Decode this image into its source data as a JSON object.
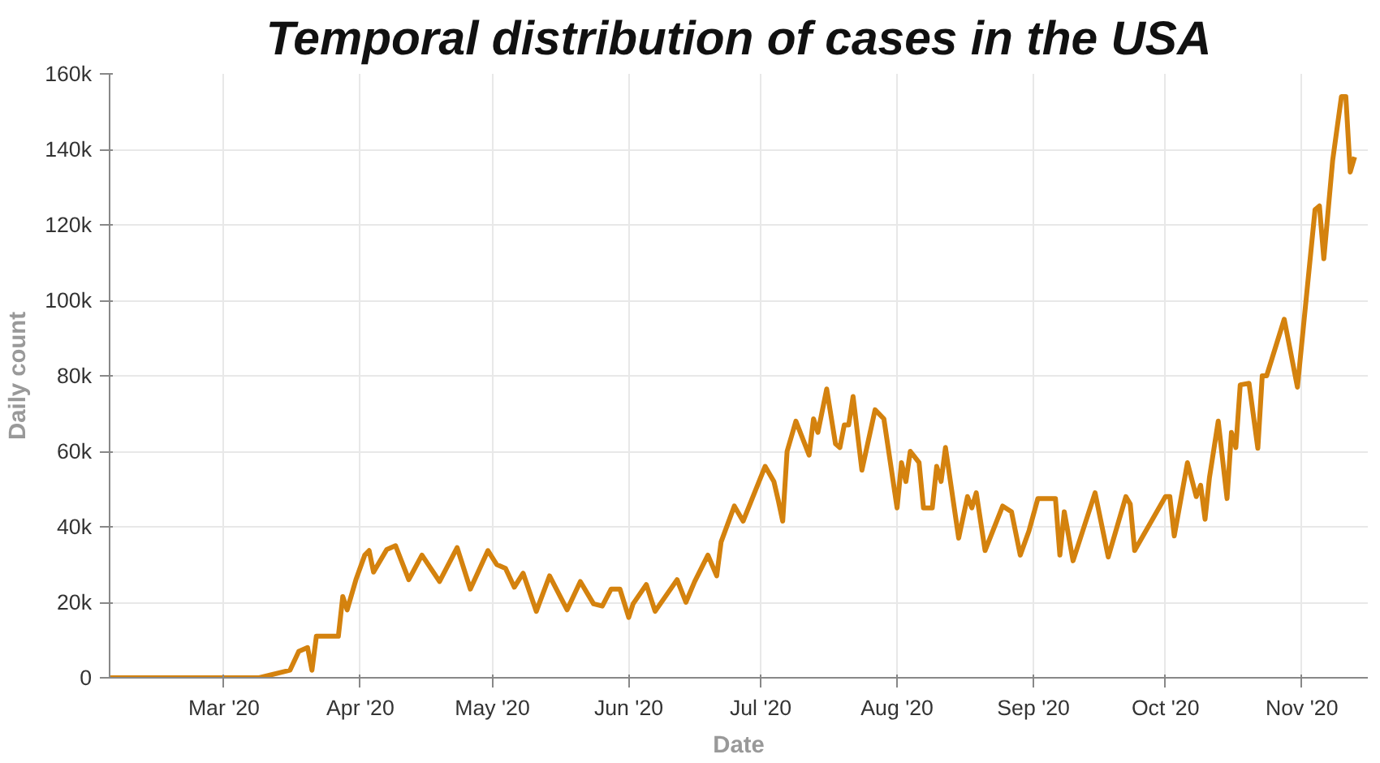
{
  "chart_data": {
    "type": "line",
    "title": "Temporal distribution of cases in the USA",
    "xlabel": "Date",
    "ylabel": "Daily count",
    "x": [
      "2020-02-04",
      "2020-03-09",
      "2020-03-16",
      "2020-03-18",
      "2020-03-20",
      "2020-03-21",
      "2020-03-22",
      "2020-03-27",
      "2020-03-28",
      "2020-03-29",
      "2020-03-31",
      "2020-04-02",
      "2020-04-03",
      "2020-04-04",
      "2020-04-07",
      "2020-04-09",
      "2020-04-12",
      "2020-04-15",
      "2020-04-19",
      "2020-04-23",
      "2020-04-26",
      "2020-04-30",
      "2020-05-02",
      "2020-05-04",
      "2020-05-06",
      "2020-05-08",
      "2020-05-11",
      "2020-05-14",
      "2020-05-18",
      "2020-05-21",
      "2020-05-24",
      "2020-05-26",
      "2020-05-28",
      "2020-05-30",
      "2020-06-01",
      "2020-06-02",
      "2020-06-05",
      "2020-06-07",
      "2020-06-12",
      "2020-06-14",
      "2020-06-16",
      "2020-06-19",
      "2020-06-21",
      "2020-06-22",
      "2020-06-25",
      "2020-06-27",
      "2020-07-02",
      "2020-07-04",
      "2020-07-05",
      "2020-07-06",
      "2020-07-07",
      "2020-07-09",
      "2020-07-12",
      "2020-07-13",
      "2020-07-14",
      "2020-07-16",
      "2020-07-18",
      "2020-07-19",
      "2020-07-20",
      "2020-07-21",
      "2020-07-22",
      "2020-07-24",
      "2020-07-27",
      "2020-07-29",
      "2020-08-01",
      "2020-08-02",
      "2020-08-03",
      "2020-08-04",
      "2020-08-06",
      "2020-08-07",
      "2020-08-09",
      "2020-08-10",
      "2020-08-11",
      "2020-08-12",
      "2020-08-15",
      "2020-08-17",
      "2020-08-18",
      "2020-08-19",
      "2020-08-21",
      "2020-08-25",
      "2020-08-27",
      "2020-08-29",
      "2020-08-31",
      "2020-09-02",
      "2020-09-06",
      "2020-09-07",
      "2020-09-08",
      "2020-09-10",
      "2020-09-15",
      "2020-09-18",
      "2020-09-22",
      "2020-09-23",
      "2020-09-24",
      "2020-10-01",
      "2020-10-02",
      "2020-10-03",
      "2020-10-06",
      "2020-10-08",
      "2020-10-09",
      "2020-10-10",
      "2020-10-11",
      "2020-10-13",
      "2020-10-15",
      "2020-10-16",
      "2020-10-17",
      "2020-10-18",
      "2020-10-20",
      "2020-10-22",
      "2020-10-23",
      "2020-10-24",
      "2020-10-28",
      "2020-10-31",
      "2020-11-04",
      "2020-11-05",
      "2020-11-06",
      "2020-11-08",
      "2020-11-10",
      "2020-11-11",
      "2020-11-12",
      "2020-11-13"
    ],
    "series": [
      {
        "color": "#d4820e",
        "values": [
          0,
          0,
          2000,
          7000,
          8000,
          2000,
          11000,
          11000,
          21500,
          18000,
          26000,
          32500,
          33700,
          28000,
          34000,
          35000,
          26000,
          32500,
          25500,
          34500,
          23500,
          33700,
          30000,
          29000,
          24000,
          27700,
          17600,
          27000,
          18000,
          25500,
          19600,
          19000,
          23500,
          23500,
          16000,
          19600,
          24700,
          17600,
          26000,
          20000,
          25500,
          32500,
          27000,
          36000,
          45500,
          41500,
          56000,
          52000,
          47000,
          41500,
          60000,
          68000,
          59000,
          68600,
          65000,
          76500,
          62000,
          61000,
          67000,
          67000,
          74500,
          55000,
          71000,
          68600,
          45000,
          57000,
          52000,
          60000,
          57000,
          45000,
          45000,
          56000,
          52000,
          61000,
          37000,
          48000,
          45000,
          49000,
          33700,
          45500,
          44000,
          32500,
          39000,
          47500,
          47500,
          32500,
          44000,
          31000,
          49000,
          32000,
          48000,
          46000,
          33700,
          48000,
          48000,
          37600,
          57000,
          48000,
          51000,
          42000,
          53000,
          68000,
          47500,
          65000,
          61000,
          77600,
          78000,
          60800,
          80000,
          80000,
          95000,
          77000,
          124000,
          125000,
          111000,
          137000,
          154000,
          154000,
          134000,
          138000
        ]
      }
    ],
    "xlim": [
      "2020-02-04",
      "2020-11-16"
    ],
    "xticks": [
      {
        "value": "2020-03-01",
        "label": "Mar '20"
      },
      {
        "value": "2020-04-01",
        "label": "Apr '20"
      },
      {
        "value": "2020-05-01",
        "label": "May '20"
      },
      {
        "value": "2020-06-01",
        "label": "Jun '20"
      },
      {
        "value": "2020-07-01",
        "label": "Jul '20"
      },
      {
        "value": "2020-08-01",
        "label": "Aug '20"
      },
      {
        "value": "2020-09-01",
        "label": "Sep '20"
      },
      {
        "value": "2020-10-01",
        "label": "Oct '20"
      },
      {
        "value": "2020-11-01",
        "label": "Nov '20"
      }
    ],
    "ylim": [
      0,
      160000
    ],
    "yticks": [
      0,
      {
        "value": 20000,
        "label": "20k"
      },
      {
        "value": 40000,
        "label": "40k"
      },
      {
        "value": 60000,
        "label": "60k"
      },
      {
        "value": 80000,
        "label": "80k"
      },
      {
        "value": 100000,
        "label": "100k"
      },
      {
        "value": 120000,
        "label": "120k"
      },
      {
        "value": 140000,
        "label": "140k"
      },
      {
        "value": 160000,
        "label": "160k"
      }
    ],
    "grid": true,
    "line_style": "solid"
  }
}
